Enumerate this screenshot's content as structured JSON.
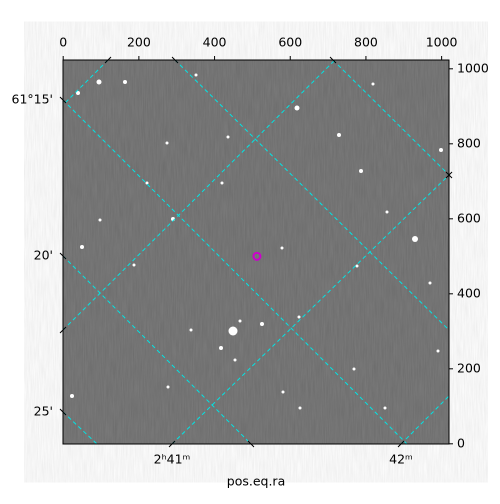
{
  "chart_data": {
    "type": "image",
    "xlabel": "pos.eq.ra",
    "xlim": [
      -0.5,
      1019.5
    ],
    "xticks": [
      0,
      200,
      400,
      600,
      800,
      1000
    ],
    "ylim": [
      -0.5,
      1023.5
    ],
    "yticks": [
      0,
      200,
      400,
      600,
      800,
      1000
    ],
    "ra_ticks": [
      "2ʰ41ᵐ",
      "42ᵐ"
    ],
    "dec_ticks": [
      "61°15'",
      "20'",
      "25'"
    ],
    "marker": {
      "x": 512,
      "y": 500,
      "color": "#cc00cc"
    }
  }
}
